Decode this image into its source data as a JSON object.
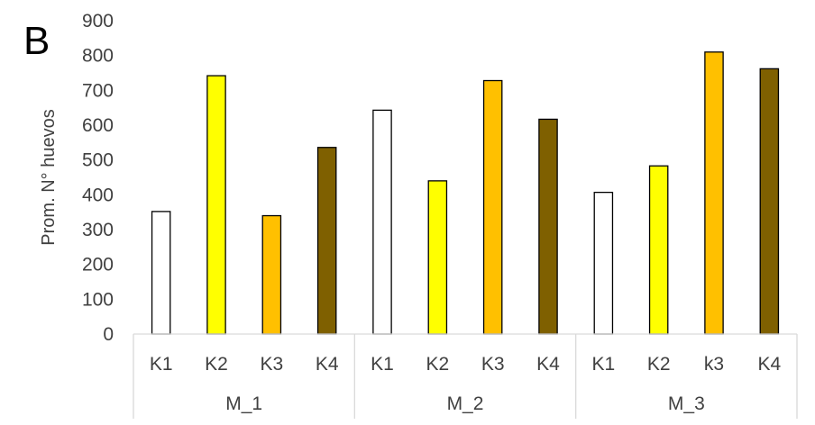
{
  "chart_data": {
    "type": "bar",
    "panel_label": "B",
    "ylabel": "Prom. N° huevos",
    "xlabel": "",
    "ylim": [
      0,
      900
    ],
    "yticks": [
      0,
      100,
      200,
      300,
      400,
      500,
      600,
      700,
      800,
      900
    ],
    "grid": false,
    "groups": [
      {
        "name": "M_1",
        "bars": [
          {
            "label": "K1",
            "value": 352,
            "color": "#ffffff"
          },
          {
            "label": "K2",
            "value": 742,
            "color": "#ffff00"
          },
          {
            "label": "K3",
            "value": 340,
            "color": "#ffc000"
          },
          {
            "label": "K4",
            "value": 536,
            "color": "#7f6000"
          }
        ]
      },
      {
        "name": "M_2",
        "bars": [
          {
            "label": "K1",
            "value": 643,
            "color": "#ffffff"
          },
          {
            "label": "K2",
            "value": 440,
            "color": "#ffff00"
          },
          {
            "label": "K3",
            "value": 728,
            "color": "#ffc000"
          },
          {
            "label": "K4",
            "value": 617,
            "color": "#7f6000"
          }
        ]
      },
      {
        "name": "M_3",
        "bars": [
          {
            "label": "K1",
            "value": 407,
            "color": "#ffffff"
          },
          {
            "label": "K2",
            "value": 483,
            "color": "#ffff00"
          },
          {
            "label": "k3",
            "value": 810,
            "color": "#ffc000"
          },
          {
            "label": "K4",
            "value": 762,
            "color": "#7f6000"
          }
        ]
      }
    ]
  }
}
